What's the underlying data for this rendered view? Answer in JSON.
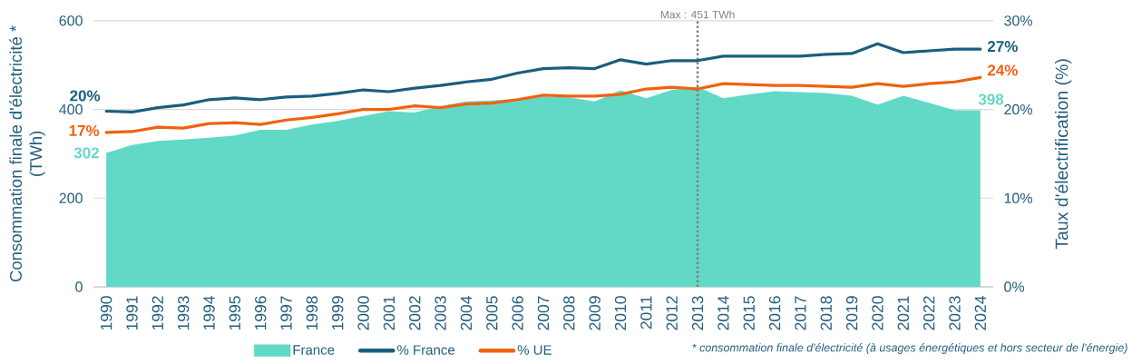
{
  "chart_data": {
    "type": "line",
    "ylabel": "Consommation finale d'électricité * (TWh)",
    "y2label": "Taux d'électrification (%)",
    "x": [
      1990,
      1991,
      1992,
      1993,
      1994,
      1995,
      1996,
      1997,
      1998,
      1999,
      2000,
      2001,
      2002,
      2003,
      2004,
      2005,
      2006,
      2007,
      2008,
      2009,
      2010,
      2011,
      2012,
      2013,
      2014,
      2015,
      2016,
      2017,
      2018,
      2019,
      2020,
      2021,
      2022,
      2023,
      2024
    ],
    "xlim": [
      1989.5,
      2024.5
    ],
    "xticks": [
      1990,
      1991,
      1992,
      1993,
      1994,
      1995,
      1996,
      1997,
      1998,
      1999,
      2000,
      2001,
      2002,
      2003,
      2004,
      2005,
      2006,
      2007,
      2008,
      2009,
      2010,
      2011,
      2012,
      2013,
      2014,
      2015,
      2016,
      2017,
      2018,
      2019,
      2020,
      2021,
      2022,
      2023,
      2024
    ],
    "ylim": [
      0,
      600
    ],
    "yticks": [
      0,
      200,
      400,
      600
    ],
    "y2lim": [
      0,
      30
    ],
    "y2ticks": [
      {
        "value": 0,
        "label": "0%"
      },
      {
        "value": 10,
        "label": "10%"
      },
      {
        "value": 20,
        "label": "20%"
      },
      {
        "value": 30,
        "label": "30%"
      }
    ],
    "grid": "y",
    "legend": "bottom",
    "series": [
      {
        "name": "France",
        "type": "area",
        "color": "#62d9c7",
        "values": [
          302,
          320,
          329,
          332,
          336,
          341,
          354,
          354,
          366,
          374,
          385,
          396,
          393,
          407,
          418,
          420,
          424,
          428,
          427,
          418,
          443,
          425,
          444,
          451,
          425,
          434,
          441,
          439,
          437,
          431,
          411,
          431,
          415,
          398,
          398
        ],
        "value_labels": [
          "302",
          null,
          null,
          null,
          null,
          null,
          null,
          null,
          null,
          null,
          null,
          null,
          null,
          null,
          null,
          null,
          null,
          null,
          null,
          null,
          null,
          null,
          null,
          null,
          null,
          null,
          null,
          null,
          null,
          null,
          null,
          null,
          null,
          null,
          "398"
        ]
      },
      {
        "name": "% France",
        "type": "line",
        "axis": "y2",
        "color": "#1a5e80",
        "values": [
          19.8,
          19.7,
          20.2,
          20.5,
          21.1,
          21.3,
          21.1,
          21.4,
          21.5,
          21.8,
          22.2,
          22.0,
          22.4,
          22.7,
          23.1,
          23.4,
          24.1,
          24.6,
          24.7,
          24.6,
          25.6,
          25.1,
          25.5,
          25.5,
          26.0,
          26.0,
          26.0,
          26.0,
          26.2,
          26.3,
          27.4,
          26.4,
          26.6,
          26.8,
          26.8
        ],
        "value_labels": [
          "20%",
          null,
          null,
          null,
          null,
          null,
          null,
          null,
          null,
          null,
          null,
          null,
          null,
          null,
          null,
          null,
          null,
          null,
          null,
          null,
          null,
          null,
          null,
          null,
          null,
          null,
          null,
          null,
          null,
          null,
          null,
          null,
          null,
          null,
          "27%"
        ]
      },
      {
        "name": "% UE",
        "type": "line",
        "axis": "y2",
        "color": "#f0620f",
        "values": [
          17.4,
          17.5,
          18.0,
          17.9,
          18.4,
          18.5,
          18.3,
          18.8,
          19.1,
          19.5,
          20.0,
          20.0,
          20.4,
          20.2,
          20.6,
          20.7,
          21.1,
          21.6,
          21.5,
          21.5,
          21.7,
          22.3,
          22.5,
          22.3,
          22.9,
          22.8,
          22.7,
          22.7,
          22.6,
          22.5,
          22.9,
          22.6,
          22.9,
          23.1,
          23.6
        ],
        "value_labels": [
          "17%",
          null,
          null,
          null,
          null,
          null,
          null,
          null,
          null,
          null,
          null,
          null,
          null,
          null,
          null,
          null,
          null,
          null,
          null,
          null,
          null,
          null,
          null,
          null,
          null,
          null,
          null,
          null,
          null,
          null,
          null,
          null,
          null,
          null,
          "24%"
        ]
      }
    ],
    "ref_lines": [
      {
        "axis": "x",
        "value": 2013,
        "color": "#808080",
        "line_style": "dotted"
      }
    ],
    "annotations": [
      "Max : 451 TWh",
      "* consommation finale d'électricité (à usages énergétiques et hors secteur de l'énergie)"
    ]
  }
}
